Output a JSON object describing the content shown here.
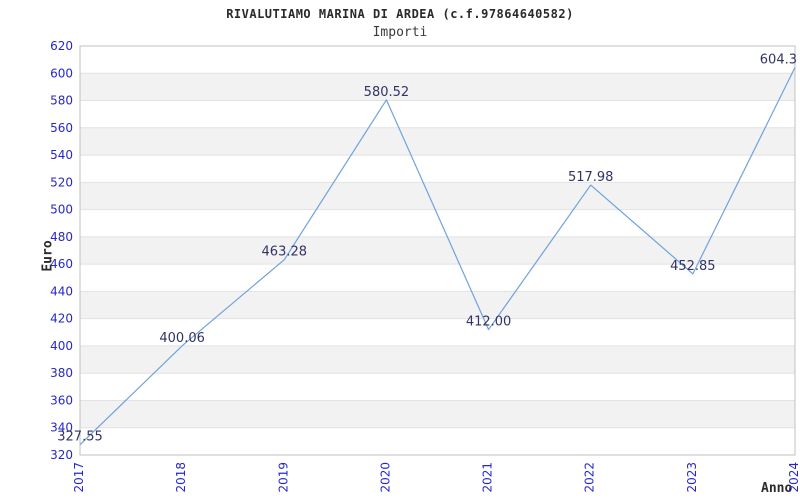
{
  "header": {
    "title": "RIVALUTIAMO MARINA DI ARDEA (c.f.97864640582)",
    "subtitle": "Importi"
  },
  "chart_data": {
    "type": "line",
    "title": "RIVALUTIAMO MARINA DI ARDEA (c.f.97864640582)",
    "subtitle": "Importi",
    "xlabel": "Anno",
    "ylabel": "Euro",
    "x": [
      "2017",
      "2018",
      "2019",
      "2020",
      "2021",
      "2022",
      "2023",
      "2024"
    ],
    "series": [
      {
        "name": "Importi",
        "values": [
          327.55,
          400.06,
          463.28,
          580.52,
          412.0,
          517.98,
          452.85,
          604.3
        ]
      }
    ],
    "point_labels": [
      "327.55",
      "400.06",
      "463.28",
      "580.52",
      "412.00",
      "517.98",
      "452.85",
      "604.3"
    ],
    "ylim": [
      320,
      620
    ],
    "ytick_step": 20,
    "grid": true,
    "banded_background": true,
    "legend_position": "none",
    "colors": {
      "line": "#6fa3dc",
      "tick_label": "#2727cc",
      "point_label": "#333366",
      "band": "#f2f2f2",
      "gridline": "#e2e2e2",
      "plot_border": "#c0c0c0"
    }
  }
}
